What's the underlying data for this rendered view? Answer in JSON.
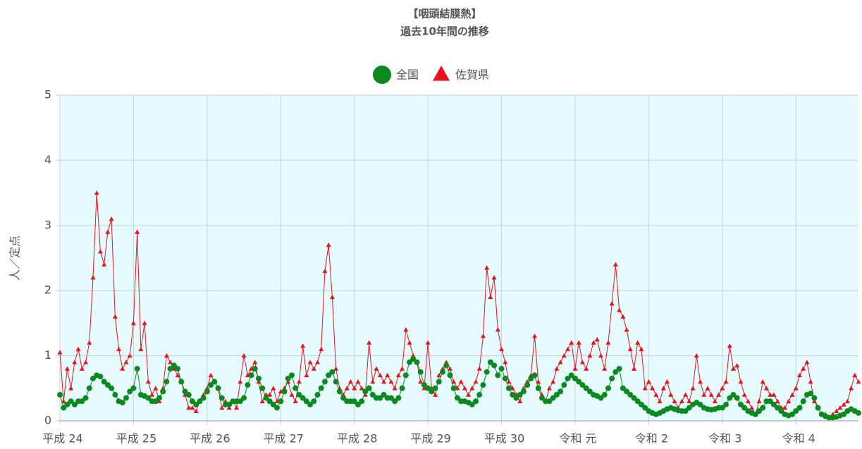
{
  "chart_data": {
    "type": "line",
    "title": [
      "【咽頭結膜熱】",
      "過去10年間の推移"
    ],
    "ylabel": "人／定点",
    "ylim": [
      0,
      5
    ],
    "yticks": [
      0,
      1,
      2,
      3,
      4,
      5
    ],
    "grid": true,
    "legend": "top",
    "categories": [
      "平成 24",
      null,
      null,
      null,
      null,
      null,
      null,
      null,
      null,
      null,
      null,
      null,
      null,
      null,
      null,
      null,
      null,
      null,
      null,
      null,
      "平成 25",
      null,
      null,
      null,
      null,
      null,
      null,
      null,
      null,
      null,
      null,
      null,
      null,
      null,
      null,
      null,
      null,
      null,
      null,
      null,
      "平成 26",
      null,
      null,
      null,
      null,
      null,
      null,
      null,
      null,
      null,
      null,
      null,
      null,
      null,
      null,
      null,
      null,
      null,
      null,
      null,
      "平成 27",
      null,
      null,
      null,
      null,
      null,
      null,
      null,
      null,
      null,
      null,
      null,
      null,
      null,
      null,
      null,
      null,
      null,
      null,
      null,
      "平成 28",
      null,
      null,
      null,
      null,
      null,
      null,
      null,
      null,
      null,
      null,
      null,
      null,
      null,
      null,
      null,
      null,
      null,
      null,
      null,
      "平成 29",
      null,
      null,
      null,
      null,
      null,
      null,
      null,
      null,
      null,
      null,
      null,
      null,
      null,
      null,
      null,
      null,
      null,
      null,
      null,
      "平成 30",
      null,
      null,
      null,
      null,
      null,
      null,
      null,
      null,
      null,
      null,
      null,
      null,
      null,
      null,
      null,
      null,
      null,
      null,
      null,
      "令和 元",
      null,
      null,
      null,
      null,
      null,
      null,
      null,
      null,
      null,
      null,
      null,
      null,
      null,
      null,
      null,
      null,
      null,
      null,
      null,
      "令和 2",
      null,
      null,
      null,
      null,
      null,
      null,
      null,
      null,
      null,
      null,
      null,
      null,
      null,
      null,
      null,
      null,
      null,
      null,
      null,
      "令和 3",
      null,
      null,
      null,
      null,
      null,
      null,
      null,
      null,
      null,
      null,
      null,
      null,
      null,
      null,
      null,
      null,
      null,
      null,
      null,
      "令和 4",
      null,
      null,
      null,
      null,
      null,
      null,
      null,
      null,
      null,
      null,
      null,
      null,
      null,
      null,
      null,
      null,
      null
    ],
    "series": [
      {
        "name": "全国",
        "color": "#0a8a1e",
        "marker": "circle",
        "values": [
          0.4,
          0.2,
          0.25,
          0.3,
          0.25,
          0.3,
          0.3,
          0.35,
          0.5,
          0.65,
          0.7,
          0.68,
          0.6,
          0.55,
          0.5,
          0.4,
          0.3,
          0.28,
          0.35,
          0.45,
          0.5,
          0.8,
          0.4,
          0.38,
          0.35,
          0.3,
          0.3,
          0.35,
          0.45,
          0.6,
          0.8,
          0.85,
          0.8,
          0.6,
          0.45,
          0.4,
          0.3,
          0.25,
          0.3,
          0.35,
          0.45,
          0.55,
          0.6,
          0.5,
          0.35,
          0.25,
          0.25,
          0.3,
          0.3,
          0.3,
          0.35,
          0.55,
          0.7,
          0.8,
          0.65,
          0.5,
          0.35,
          0.3,
          0.25,
          0.2,
          0.3,
          0.45,
          0.65,
          0.7,
          0.5,
          0.4,
          0.35,
          0.3,
          0.25,
          0.3,
          0.4,
          0.5,
          0.6,
          0.7,
          0.75,
          0.6,
          0.45,
          0.35,
          0.3,
          0.3,
          0.3,
          0.25,
          0.3,
          0.45,
          0.5,
          0.4,
          0.35,
          0.35,
          0.4,
          0.35,
          0.35,
          0.3,
          0.35,
          0.5,
          0.7,
          0.9,
          0.95,
          0.9,
          0.75,
          0.55,
          0.5,
          0.45,
          0.5,
          0.6,
          0.75,
          0.85,
          0.7,
          0.5,
          0.35,
          0.3,
          0.3,
          0.28,
          0.25,
          0.3,
          0.4,
          0.55,
          0.75,
          0.9,
          0.85,
          0.7,
          0.8,
          0.65,
          0.5,
          0.4,
          0.35,
          0.4,
          0.45,
          0.55,
          0.65,
          0.7,
          0.5,
          0.35,
          0.3,
          0.3,
          0.35,
          0.4,
          0.45,
          0.55,
          0.65,
          0.7,
          0.65,
          0.6,
          0.55,
          0.5,
          0.45,
          0.4,
          0.38,
          0.35,
          0.4,
          0.5,
          0.65,
          0.75,
          0.8,
          0.5,
          0.45,
          0.4,
          0.35,
          0.3,
          0.25,
          0.2,
          0.15,
          0.12,
          0.1,
          0.12,
          0.15,
          0.18,
          0.2,
          0.18,
          0.16,
          0.15,
          0.15,
          0.2,
          0.25,
          0.28,
          0.25,
          0.2,
          0.18,
          0.17,
          0.18,
          0.2,
          0.2,
          0.25,
          0.35,
          0.4,
          0.35,
          0.25,
          0.2,
          0.15,
          0.12,
          0.1,
          0.15,
          0.2,
          0.3,
          0.3,
          0.25,
          0.2,
          0.15,
          0.1,
          0.08,
          0.1,
          0.15,
          0.2,
          0.3,
          0.4,
          0.42,
          0.35,
          0.2,
          0.1,
          0.07,
          0.05,
          0.05,
          0.06,
          0.08,
          0.1,
          0.15,
          0.18,
          0.15,
          0.12
        ]
      },
      {
        "name": "佐賀県",
        "color": "#e8141b",
        "marker": "triangle",
        "values": [
          1.05,
          0.3,
          0.8,
          0.5,
          0.9,
          1.1,
          0.8,
          0.9,
          1.2,
          2.2,
          3.5,
          2.6,
          2.4,
          2.9,
          3.1,
          1.6,
          1.1,
          0.8,
          0.9,
          1.0,
          1.5,
          2.9,
          1.1,
          1.5,
          0.6,
          0.4,
          0.5,
          0.3,
          0.5,
          1.0,
          0.9,
          0.8,
          0.7,
          0.6,
          0.4,
          0.2,
          0.2,
          0.15,
          0.3,
          0.4,
          0.5,
          0.7,
          0.6,
          0.5,
          0.2,
          0.3,
          0.2,
          0.3,
          0.2,
          0.6,
          1.0,
          0.7,
          0.8,
          0.9,
          0.6,
          0.3,
          0.4,
          0.4,
          0.5,
          0.3,
          0.45,
          0.5,
          0.6,
          0.4,
          0.3,
          0.6,
          1.15,
          0.7,
          0.9,
          0.8,
          0.9,
          1.1,
          2.3,
          2.7,
          1.9,
          0.8,
          0.5,
          0.4,
          0.5,
          0.6,
          0.5,
          0.6,
          0.5,
          0.4,
          1.2,
          0.6,
          0.8,
          0.7,
          0.6,
          0.7,
          0.6,
          0.5,
          0.7,
          0.8,
          1.4,
          1.2,
          1.0,
          0.9,
          0.6,
          0.5,
          1.2,
          0.5,
          0.4,
          0.7,
          0.8,
          0.9,
          0.8,
          0.6,
          0.5,
          0.6,
          0.5,
          0.4,
          0.5,
          0.6,
          0.8,
          1.3,
          2.35,
          1.9,
          2.2,
          1.4,
          1.1,
          0.9,
          0.6,
          0.5,
          0.4,
          0.3,
          0.5,
          0.6,
          0.7,
          1.3,
          0.6,
          0.4,
          0.3,
          0.5,
          0.6,
          0.8,
          0.9,
          1.0,
          1.1,
          1.2,
          0.8,
          1.2,
          0.9,
          0.8,
          1.0,
          1.2,
          1.25,
          1.0,
          0.8,
          1.2,
          1.8,
          2.4,
          1.7,
          1.6,
          1.4,
          1.1,
          0.8,
          1.2,
          1.1,
          0.5,
          0.6,
          0.5,
          0.4,
          0.3,
          0.5,
          0.6,
          0.4,
          0.3,
          0.2,
          0.3,
          0.4,
          0.3,
          0.5,
          1.0,
          0.6,
          0.4,
          0.5,
          0.4,
          0.3,
          0.4,
          0.5,
          0.6,
          1.15,
          0.8,
          0.85,
          0.6,
          0.4,
          0.3,
          0.2,
          0.1,
          0.3,
          0.6,
          0.5,
          0.4,
          0.4,
          0.3,
          0.2,
          0.2,
          0.3,
          0.4,
          0.5,
          0.7,
          0.8,
          0.9,
          0.6,
          0.3,
          0.2,
          0.1,
          0.1,
          0.05,
          0.1,
          0.15,
          0.2,
          0.25,
          0.3,
          0.5,
          0.7,
          0.6
        ]
      }
    ]
  }
}
